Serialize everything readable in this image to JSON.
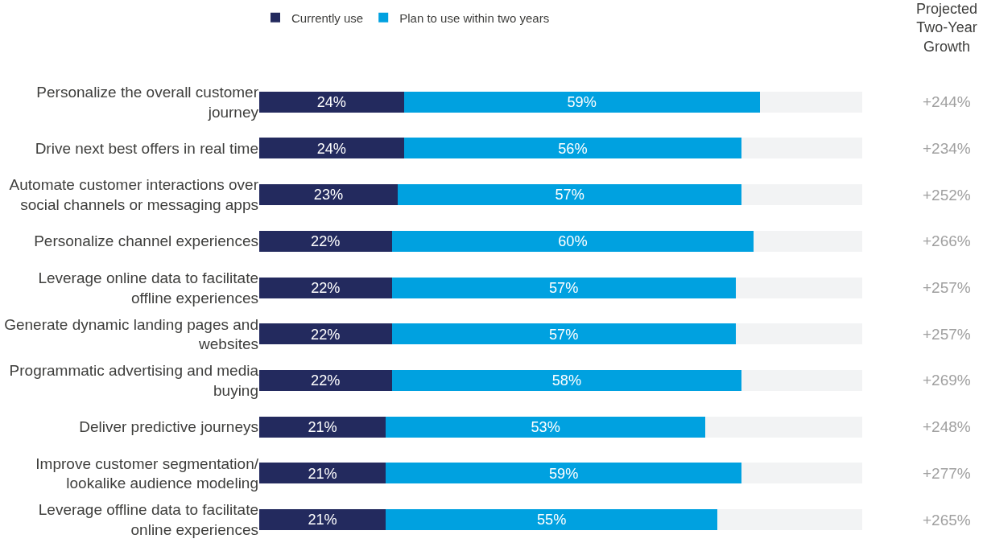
{
  "chart_data": {
    "type": "bar",
    "orientation": "horizontal",
    "stacked": true,
    "xlim": [
      0,
      100
    ],
    "tick_labels": "y",
    "grid": false,
    "legend": "top",
    "categories": [
      "Personalize the overall customer journey",
      "Drive next best offers in real time",
      "Automate customer interactions over social channels or messaging apps",
      "Personalize channel experiences",
      "Leverage online data to facilitate offline experiences",
      "Generate dynamic landing pages and websites",
      "Programmatic advertising and media buying",
      "Deliver predictive journeys",
      "Improve customer segmentation/ lookalike audience modeling",
      "Leverage offline data to facilitate online experiences"
    ],
    "series": [
      {
        "name": "Currently use",
        "color": "#232a5e",
        "values": [
          24,
          24,
          23,
          22,
          22,
          22,
          22,
          21,
          21,
          21
        ],
        "value_labels": [
          "24%",
          "24%",
          "23%",
          "22%",
          "22%",
          "22%",
          "22%",
          "21%",
          "21%",
          "21%"
        ]
      },
      {
        "name": "Plan to use within two years",
        "color": "#00a1e0",
        "values": [
          59,
          56,
          57,
          60,
          57,
          57,
          58,
          53,
          59,
          55
        ],
        "value_labels": [
          "59%",
          "56%",
          "57%",
          "60%",
          "57%",
          "57%",
          "58%",
          "53%",
          "59%",
          "55%"
        ]
      },
      {
        "color": "#f2f3f4",
        "values": [
          17,
          20,
          20,
          18,
          21,
          21,
          20,
          26,
          20,
          24
        ]
      }
    ],
    "annotations": [
      "Projected Two-Year Growth",
      "+244%",
      "+234%",
      "+252%",
      "+266%",
      "+257%",
      "+257%",
      "+269%",
      "+248%",
      "+277%",
      "+265%"
    ]
  }
}
